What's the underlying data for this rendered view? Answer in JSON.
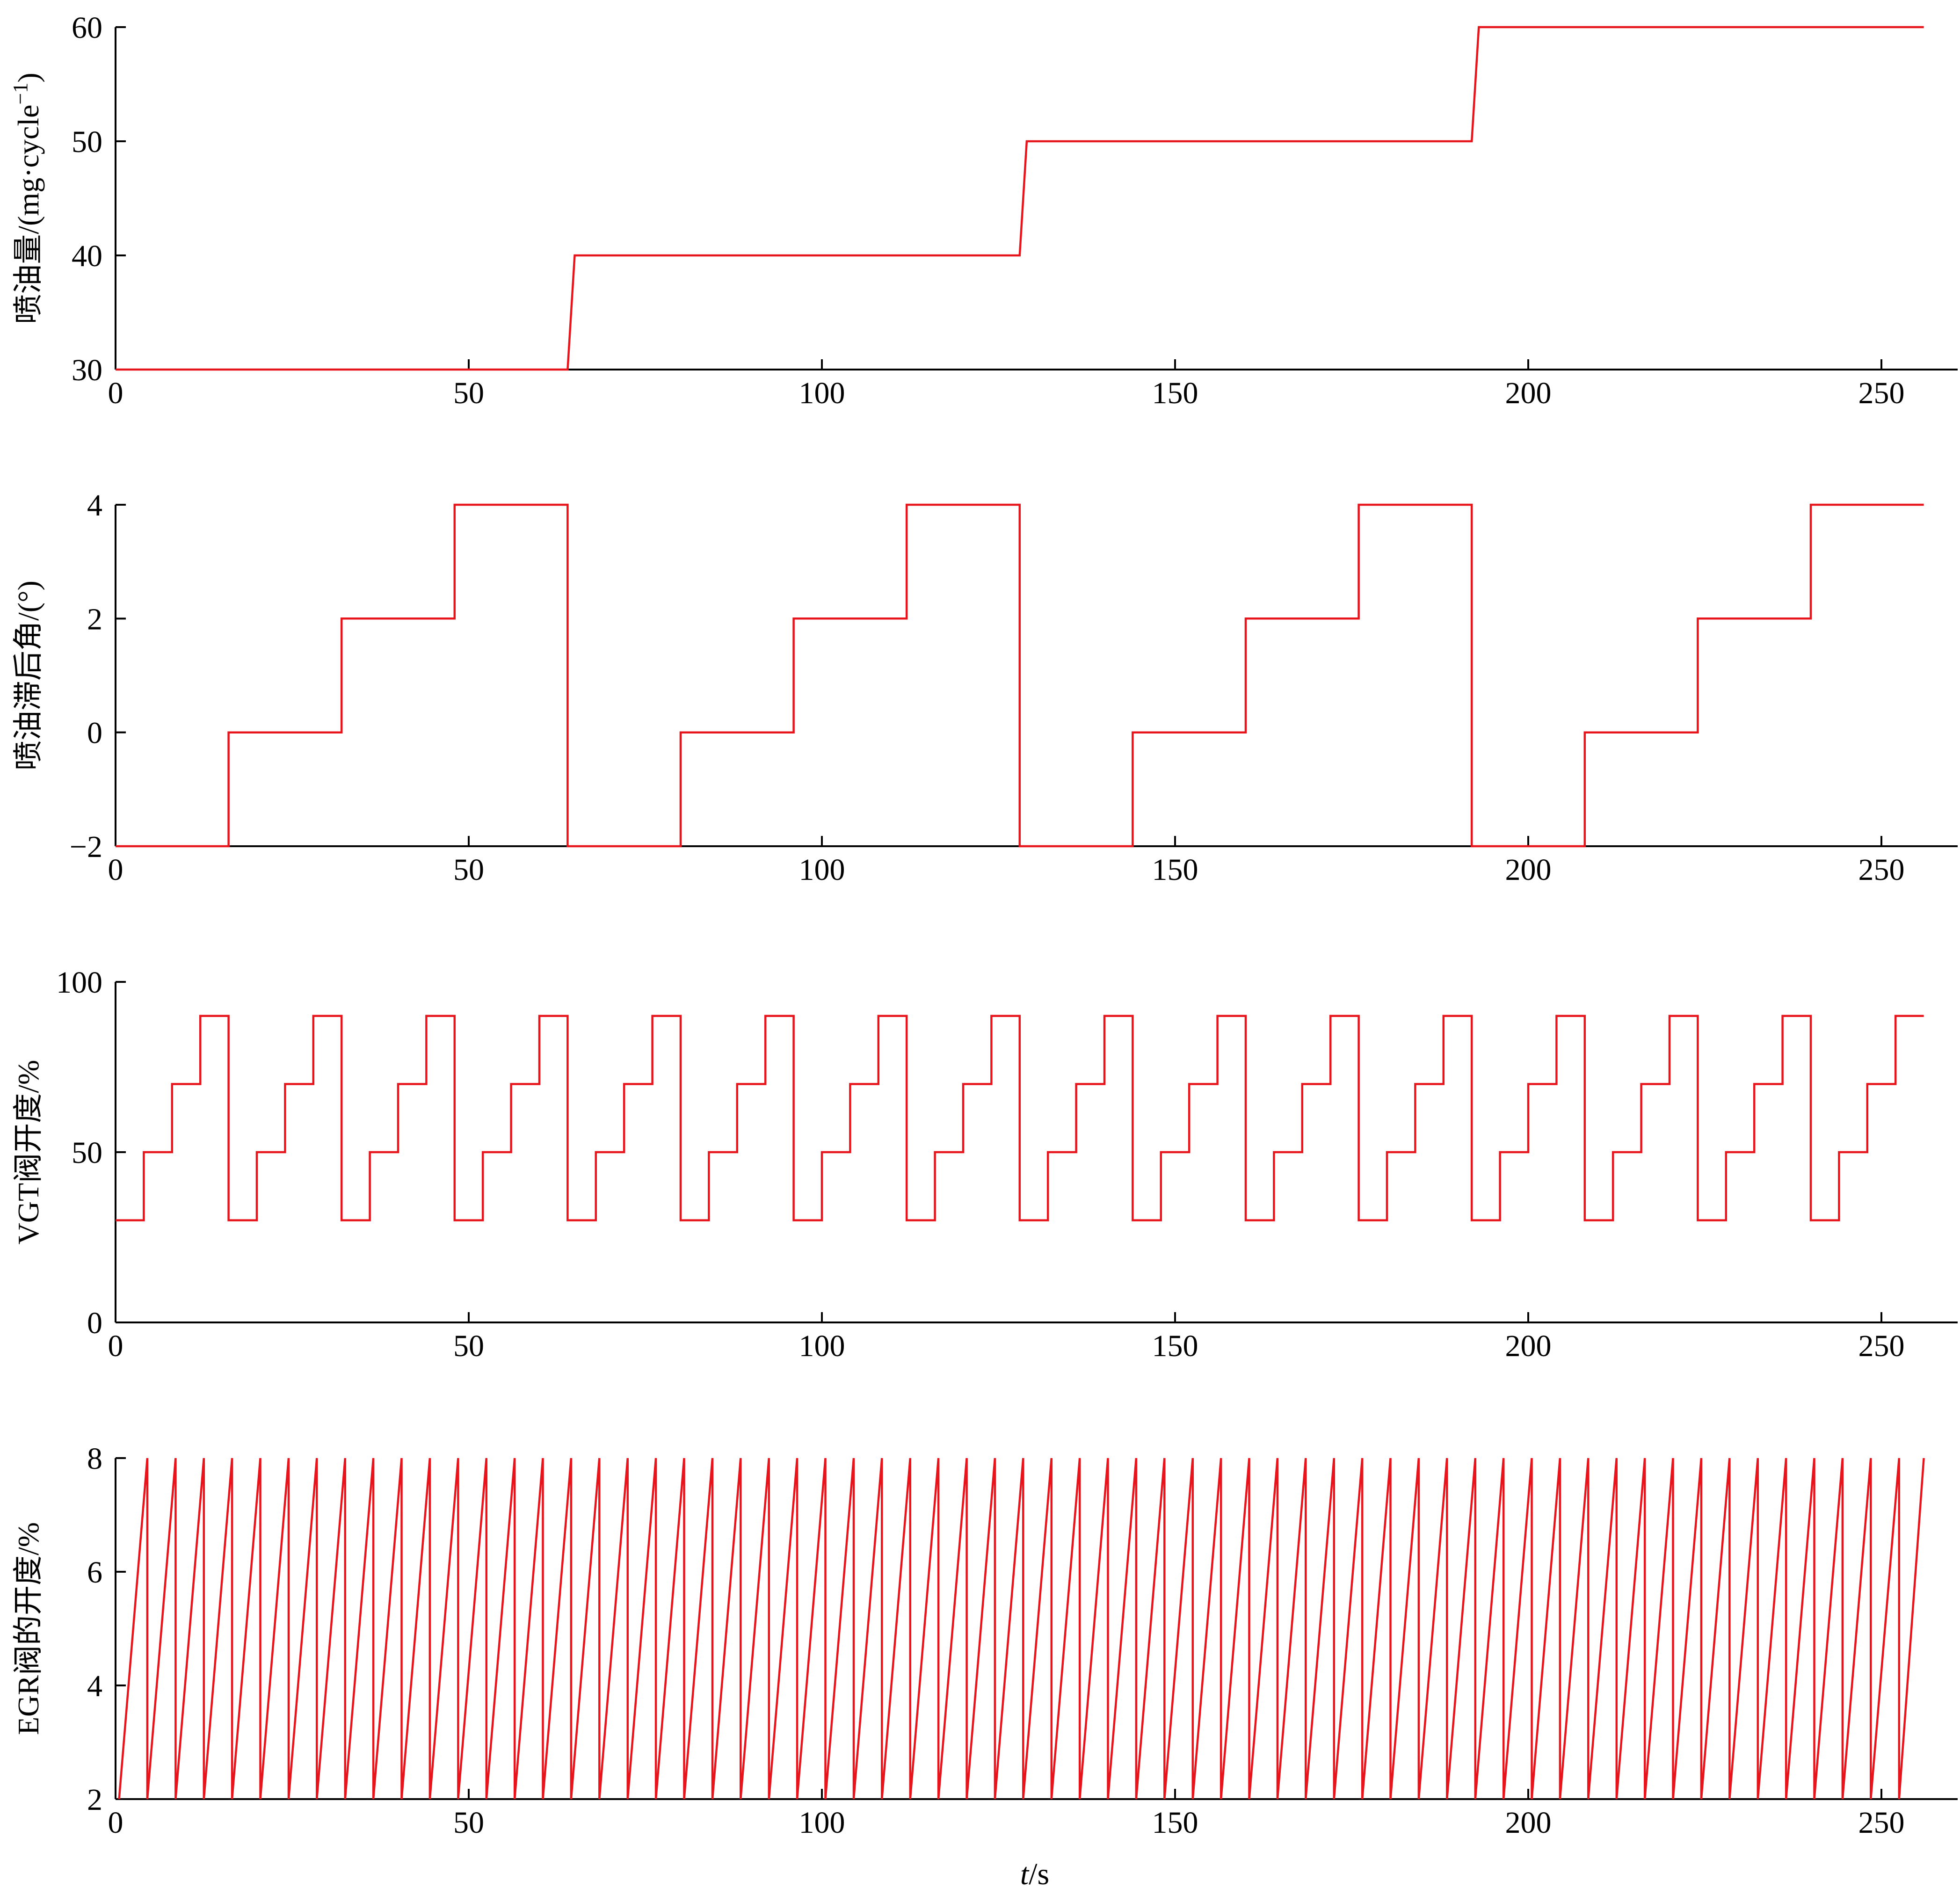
{
  "series_color": "#e8141c",
  "x_axis_label": {
    "italic": "t",
    "rest": "/s"
  },
  "chart_data": [
    {
      "type": "line",
      "ylabel_main": "喷油量/(mg·cycle",
      "ylabel_sup": "−1",
      "ylabel_close": ")",
      "xlim": [
        0,
        260
      ],
      "ylim": [
        30,
        60
      ],
      "xticks": [
        0,
        50,
        100,
        150,
        200,
        250
      ],
      "yticks": [
        30,
        40,
        50,
        60
      ],
      "series": [
        {
          "x": [
            0,
            64,
            65,
            128,
            129,
            192,
            193,
            256
          ],
          "y": [
            30,
            30,
            40,
            40,
            50,
            50,
            60,
            60
          ]
        }
      ]
    },
    {
      "type": "line",
      "ylabel_main": "喷油滞后角/(°)",
      "xlim": [
        0,
        260
      ],
      "ylim": [
        -2,
        4
      ],
      "xticks": [
        0,
        50,
        100,
        150,
        200,
        250
      ],
      "yticks": [
        -2,
        0,
        2,
        4
      ],
      "ytick_labels": [
        "−2",
        "0",
        "2",
        "4"
      ],
      "pattern": {
        "kind": "stair-repeat",
        "period": 64,
        "step": 16,
        "levels": [
          -2,
          0,
          2,
          4
        ],
        "x_end": 256
      }
    },
    {
      "type": "line",
      "ylabel_main": "VGT阀开度/%",
      "xlim": [
        0,
        260
      ],
      "ylim": [
        0,
        100
      ],
      "xticks": [
        0,
        50,
        100,
        150,
        200,
        250
      ],
      "yticks": [
        0,
        50,
        100
      ],
      "pattern": {
        "kind": "stair-repeat",
        "period": 16,
        "step": 4,
        "levels": [
          30,
          50,
          70,
          90
        ],
        "x_end": 256
      }
    },
    {
      "type": "line",
      "ylabel_main": "EGR阀的开度/%",
      "xlim": [
        0,
        260
      ],
      "ylim": [
        2,
        8
      ],
      "xticks": [
        0,
        50,
        100,
        150,
        200,
        250
      ],
      "yticks": [
        2,
        4,
        6,
        8
      ],
      "pattern": {
        "kind": "sawtooth",
        "period": 4,
        "x_start": 0.5,
        "low": 2,
        "high": 8,
        "x_end": 256
      }
    }
  ]
}
